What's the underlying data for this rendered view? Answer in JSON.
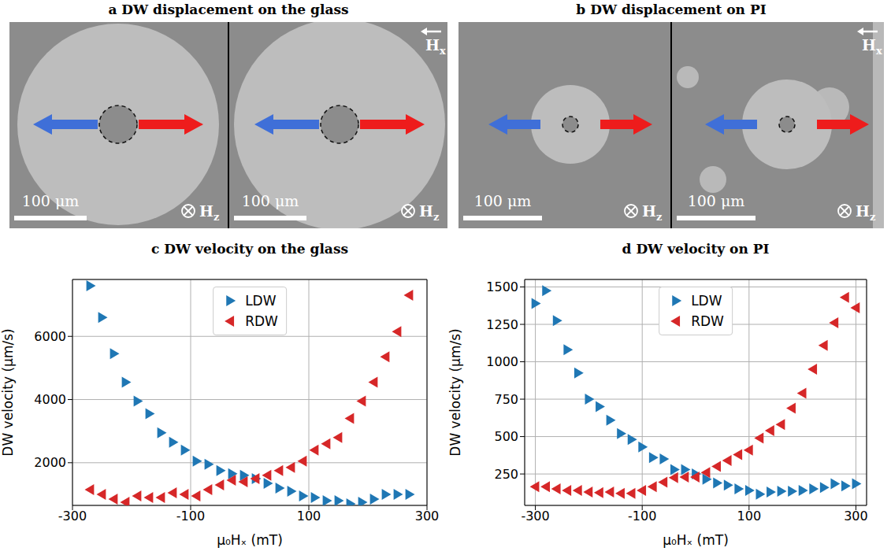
{
  "images": [
    {
      "letter": "a",
      "title": "DW displacement on the glass",
      "scale_bar": "100 μm",
      "field_in_plane": {
        "symbol": "H",
        "sub": "x"
      },
      "field_out_of_plane": {
        "symbol": "H",
        "sub": "z"
      }
    },
    {
      "letter": "b",
      "title": "DW displacement on PI",
      "scale_bar": "100 μm",
      "field_in_plane": {
        "symbol": "H",
        "sub": "x"
      },
      "field_out_of_plane": {
        "symbol": "H",
        "sub": "z"
      }
    }
  ],
  "chart_data": [
    {
      "type": "scatter",
      "letter": "c",
      "title": "DW velocity on the glass",
      "x_label": "μ₀Hₓ (mT)",
      "y_label": "DW velocity (μm/s)",
      "x": [
        -270,
        -250,
        -230,
        -210,
        -190,
        -170,
        -150,
        -130,
        -110,
        -90,
        -70,
        -50,
        -30,
        -10,
        10,
        30,
        50,
        70,
        90,
        110,
        130,
        150,
        170,
        190,
        210,
        230,
        250,
        270
      ],
      "series": [
        {
          "name": "LDW",
          "color": "#1f77b4",
          "marker": "triangle-right",
          "values": [
            7600,
            6600,
            5450,
            4550,
            3950,
            3550,
            2950,
            2650,
            2400,
            2050,
            1950,
            1750,
            1650,
            1600,
            1500,
            1350,
            1200,
            1100,
            950,
            900,
            800,
            800,
            700,
            750,
            850,
            1000,
            1000,
            1000
          ]
        },
        {
          "name": "RDW",
          "color": "#d62728",
          "marker": "triangle-left",
          "values": [
            1150,
            1000,
            850,
            750,
            950,
            900,
            900,
            1050,
            1000,
            950,
            1150,
            1300,
            1450,
            1400,
            1500,
            1600,
            1750,
            1850,
            2050,
            2400,
            2600,
            2800,
            3400,
            3950,
            4550,
            5350,
            6150,
            7300
          ]
        }
      ],
      "xlim": [
        -300,
        300
      ],
      "xticks": [
        -300,
        -100,
        100,
        300
      ],
      "ylim": [
        650,
        7800
      ],
      "yticks": [
        2000,
        4000,
        6000
      ],
      "grid": true,
      "legend": "upper center"
    },
    {
      "type": "scatter",
      "letter": "d",
      "title": "DW velocity on PI",
      "x_label": "μ₀Hₓ (mT)",
      "y_label": "DW velocity (μm/s)",
      "x": [
        -300,
        -280,
        -260,
        -240,
        -220,
        -200,
        -180,
        -160,
        -140,
        -120,
        -100,
        -80,
        -60,
        -40,
        -20,
        0,
        20,
        40,
        60,
        80,
        100,
        120,
        140,
        160,
        180,
        200,
        220,
        240,
        260,
        280,
        300
      ],
      "series": [
        {
          "name": "LDW",
          "color": "#1f77b4",
          "marker": "triangle-right",
          "values": [
            1390,
            1475,
            1275,
            1080,
            925,
            750,
            700,
            610,
            520,
            480,
            430,
            360,
            350,
            280,
            280,
            250,
            215,
            190,
            175,
            150,
            140,
            115,
            130,
            135,
            135,
            140,
            150,
            160,
            185,
            170,
            185
          ]
        },
        {
          "name": "RDW",
          "color": "#d62728",
          "marker": "triangle-left",
          "values": [
            165,
            165,
            150,
            140,
            140,
            130,
            125,
            130,
            120,
            120,
            140,
            165,
            195,
            225,
            230,
            230,
            260,
            300,
            340,
            380,
            410,
            490,
            540,
            580,
            690,
            790,
            950,
            1110,
            1260,
            1430,
            1360
          ]
        }
      ],
      "xlim": [
        -320,
        320
      ],
      "xticks": [
        -300,
        -100,
        100,
        300
      ],
      "ylim": [
        40,
        1550
      ],
      "yticks": [
        250,
        500,
        750,
        1000,
        1250,
        1500
      ],
      "grid": true,
      "legend": "upper center"
    }
  ]
}
